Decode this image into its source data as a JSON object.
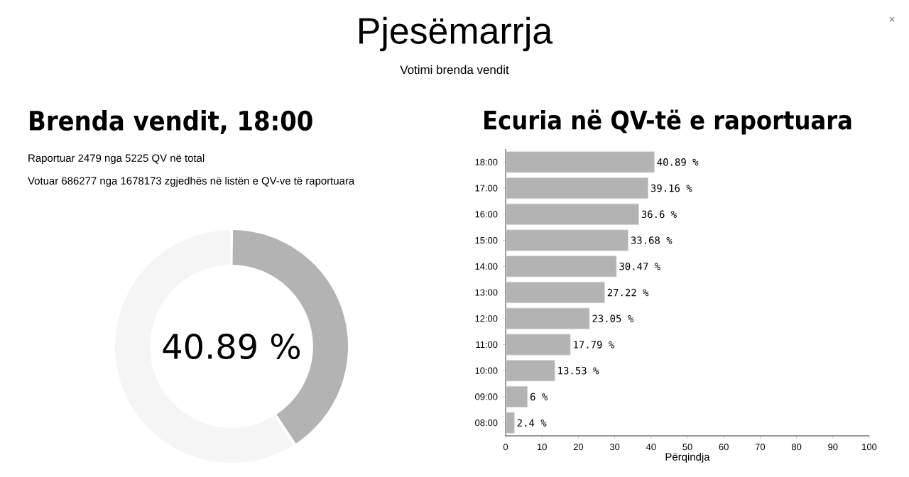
{
  "chart_data": [
    {
      "type": "other",
      "title": "Pjesëmarrja",
      "subtitle": "Votimi brenda vendit",
      "annotations": [
        "×"
      ]
    },
    {
      "type": "donut",
      "title": "Brenda vendit, 18:00",
      "annotations": [
        "Raportuar 2479 nga 5225 QV në total",
        "Votuar 686277 nga 1678173 zgjedhës në listën e QV-ve të raportuara",
        "40.89 %"
      ],
      "categories": [
        null,
        null
      ],
      "values": [
        40.89,
        59.11
      ],
      "colors": [
        "#b3b3b3",
        "#f5f5f5"
      ]
    },
    {
      "type": "bar",
      "orientation": "horizontal",
      "title": "Ecuria në QV-të e raportuara",
      "xlabel": "Përqindja",
      "categories": [
        "18:00",
        "17:00",
        "16:00",
        "15:00",
        "14:00",
        "13:00",
        "12:00",
        "11:00",
        "10:00",
        "09:00",
        "08:00"
      ],
      "values": [
        40.89,
        39.16,
        36.6,
        33.68,
        30.47,
        27.22,
        23.05,
        17.79,
        13.53,
        6,
        2.4
      ],
      "value_labels": [
        "40.89 %",
        "39.16 %",
        "36.6 %",
        "33.68 %",
        "30.47 %",
        "27.22 %",
        "23.05 %",
        "17.79 %",
        "13.53 %",
        "6 %",
        "2.4 %"
      ],
      "color": "#b3b3b3",
      "xlim": [
        0,
        100
      ],
      "xticks": [
        0,
        10,
        20,
        30,
        40,
        50,
        60,
        70,
        80,
        90,
        100
      ]
    }
  ]
}
